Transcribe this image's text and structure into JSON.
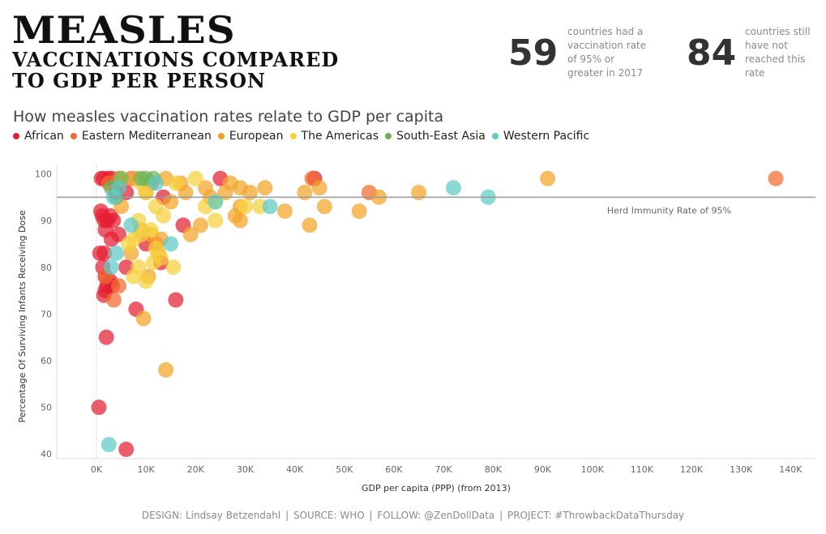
{
  "header": {
    "title_line1": "MEASLES",
    "title_line2": "VACCINATIONS COMPARED",
    "title_line3": "TO GDP PER PERSON"
  },
  "kpis": [
    {
      "value": "59",
      "text": [
        "countries had a",
        "vaccination rate",
        "of 95% or",
        "greater in 2017"
      ]
    },
    {
      "value": "84",
      "text": [
        "countries still",
        "have not",
        "reached this",
        "rate"
      ]
    }
  ],
  "subtitle": "How measles vaccination rates relate to GDP per capita",
  "legend": [
    {
      "label": "African",
      "color": "#e41e32"
    },
    {
      "label": "Eastern Mediterranean",
      "color": "#f26b2f"
    },
    {
      "label": "European",
      "color": "#f2a327"
    },
    {
      "label": "The Americas",
      "color": "#f5d03b"
    },
    {
      "label": "South-East Asia",
      "color": "#6db35c"
    },
    {
      "label": "Western Pacific",
      "color": "#5ecbc8"
    }
  ],
  "footer": {
    "design": "DESIGN: Lindsay Betzendahl",
    "source": "SOURCE: WHO",
    "follow": "FOLLOW: @ZenDollData",
    "project": "PROJECT: #ThrowbackDataThursday",
    "separator": "|"
  },
  "chart_data": {
    "type": "scatter",
    "title": "",
    "xlabel": "GDP per capita (PPP) (from 2013)",
    "ylabel": "Percentage Of Surviving Infants Receiving Dose",
    "xlim": [
      -8000,
      145000
    ],
    "ylim": [
      39,
      102
    ],
    "x_ticks": [
      0,
      10000,
      20000,
      30000,
      40000,
      50000,
      60000,
      70000,
      80000,
      90000,
      100000,
      110000,
      120000,
      130000,
      140000
    ],
    "x_tick_labels": [
      "0K",
      "10K",
      "20K",
      "30K",
      "40K",
      "50K",
      "60K",
      "70K",
      "80K",
      "90K",
      "100K",
      "110K",
      "120K",
      "130K",
      "140K"
    ],
    "y_ticks": [
      40,
      50,
      60,
      70,
      80,
      90,
      100
    ],
    "y_tick_labels": [
      "40",
      "50",
      "60",
      "70",
      "80",
      "90",
      "100"
    ],
    "reference_line": {
      "y": 95,
      "label": "Herd Immunity Rate of 95%"
    },
    "series": [
      {
        "name": "African",
        "color": "#e41e32",
        "points": [
          [
            1000,
            99
          ],
          [
            1500,
            99
          ],
          [
            2500,
            99
          ],
          [
            3000,
            99
          ],
          [
            4000,
            96
          ],
          [
            6000,
            96
          ],
          [
            13500,
            95
          ],
          [
            25000,
            99
          ],
          [
            44000,
            99
          ],
          [
            900,
            92
          ],
          [
            1200,
            91
          ],
          [
            1600,
            90
          ],
          [
            2200,
            90
          ],
          [
            2800,
            91
          ],
          [
            3400,
            90
          ],
          [
            1800,
            88
          ],
          [
            3000,
            86
          ],
          [
            4500,
            87
          ],
          [
            700,
            83
          ],
          [
            1600,
            83
          ],
          [
            1300,
            80
          ],
          [
            6000,
            80
          ],
          [
            1800,
            78
          ],
          [
            2800,
            77
          ],
          [
            2100,
            76
          ],
          [
            3200,
            76
          ],
          [
            1800,
            75
          ],
          [
            1500,
            74
          ],
          [
            10000,
            85
          ],
          [
            13000,
            81
          ],
          [
            17500,
            89
          ],
          [
            16000,
            73
          ],
          [
            8000,
            71
          ],
          [
            2000,
            65
          ],
          [
            500,
            50
          ],
          [
            6000,
            41
          ]
        ]
      },
      {
        "name": "Eastern Mediterranean",
        "color": "#f26b2f",
        "points": [
          [
            4500,
            99
          ],
          [
            7000,
            99
          ],
          [
            11000,
            98
          ],
          [
            43500,
            99
          ],
          [
            137000,
            99
          ],
          [
            55000,
            96
          ],
          [
            2500,
            98
          ],
          [
            4500,
            76
          ],
          [
            3500,
            73
          ],
          [
            1800,
            78
          ],
          [
            12000,
            85
          ]
        ]
      },
      {
        "name": "European",
        "color": "#f2a327",
        "points": [
          [
            8000,
            99
          ],
          [
            14000,
            99
          ],
          [
            17000,
            98
          ],
          [
            22000,
            97
          ],
          [
            27000,
            98
          ],
          [
            29000,
            97
          ],
          [
            31000,
            96
          ],
          [
            34000,
            97
          ],
          [
            42000,
            96
          ],
          [
            45000,
            97
          ],
          [
            57000,
            95
          ],
          [
            65000,
            96
          ],
          [
            91000,
            99
          ],
          [
            18000,
            96
          ],
          [
            26000,
            96
          ],
          [
            38000,
            92
          ],
          [
            46000,
            93
          ],
          [
            53000,
            92
          ],
          [
            29000,
            93
          ],
          [
            23000,
            95
          ],
          [
            15000,
            94
          ],
          [
            10000,
            96
          ],
          [
            13000,
            86
          ],
          [
            19000,
            87
          ],
          [
            21000,
            89
          ],
          [
            29000,
            90
          ],
          [
            43000,
            89
          ],
          [
            9000,
            88
          ],
          [
            11000,
            87
          ],
          [
            5000,
            93
          ],
          [
            7000,
            83
          ],
          [
            9500,
            69
          ],
          [
            14000,
            58
          ],
          [
            28000,
            91
          ],
          [
            10500,
            78
          ],
          [
            12500,
            83
          ]
        ]
      },
      {
        "name": "The Americas",
        "color": "#f5d03b",
        "points": [
          [
            5000,
            99
          ],
          [
            9000,
            98
          ],
          [
            16000,
            98
          ],
          [
            20000,
            99
          ],
          [
            22000,
            93
          ],
          [
            24000,
            94
          ],
          [
            10000,
            96
          ],
          [
            12000,
            93
          ],
          [
            13500,
            91
          ],
          [
            7500,
            86
          ],
          [
            9000,
            87
          ],
          [
            11000,
            88
          ],
          [
            12000,
            84
          ],
          [
            13000,
            82
          ],
          [
            15500,
            80
          ],
          [
            8500,
            90
          ],
          [
            6500,
            85
          ],
          [
            8500,
            80
          ],
          [
            10000,
            77
          ],
          [
            11500,
            81
          ],
          [
            7500,
            78
          ],
          [
            24000,
            90
          ],
          [
            30000,
            93
          ],
          [
            33000,
            93
          ]
        ]
      },
      {
        "name": "South-East Asia",
        "color": "#6db35c",
        "points": [
          [
            9000,
            99
          ],
          [
            10000,
            99
          ],
          [
            11500,
            99
          ],
          [
            3000,
            97
          ],
          [
            5000,
            99
          ],
          [
            4000,
            95
          ]
        ]
      },
      {
        "name": "Western Pacific",
        "color": "#5ecbc8",
        "points": [
          [
            72000,
            97
          ],
          [
            79000,
            95
          ],
          [
            35000,
            93
          ],
          [
            15000,
            85
          ],
          [
            7000,
            89
          ],
          [
            4000,
            83
          ],
          [
            3000,
            80
          ],
          [
            2500,
            42
          ],
          [
            12000,
            98
          ],
          [
            24000,
            94
          ],
          [
            4500,
            97
          ],
          [
            3500,
            95
          ]
        ]
      }
    ]
  }
}
